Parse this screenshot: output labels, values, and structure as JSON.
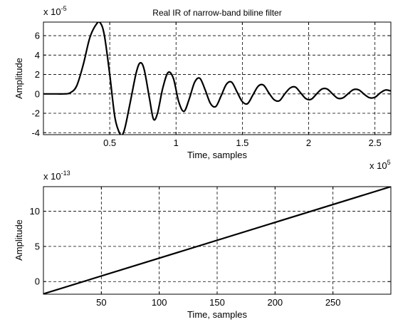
{
  "chart_data": [
    {
      "type": "line",
      "title": "Real IR of narrow-band biline filter",
      "xlabel": "Time, samples",
      "ylabel": "Amplitude",
      "x_exponent_label": "x 10",
      "x_exponent": "5",
      "y_exponent_label": "x 10",
      "y_exponent": "-5",
      "xlim": [
        0,
        2.62
      ],
      "ylim": [
        -4.2,
        7.4
      ],
      "grid": true,
      "x_ticks": [
        0.5,
        1,
        1.5,
        2,
        2.5
      ],
      "x_tick_labels": [
        "0.5",
        "1",
        "1.5",
        "2",
        "2.5"
      ],
      "y_ticks": [
        -4,
        -2,
        0,
        2,
        4,
        6
      ],
      "y_tick_labels": [
        "-4",
        "-2",
        "0",
        "2",
        "4",
        "6"
      ],
      "line_color": "#000000",
      "series": [
        {
          "x": [
            0,
            0.1,
            0.15,
            0.2,
            0.25,
            0.3,
            0.35,
            0.4,
            0.43,
            0.46,
            0.5,
            0.54,
            0.58,
            0.6,
            0.62,
            0.66,
            0.7,
            0.73,
            0.76,
            0.8,
            0.83,
            0.86,
            0.9,
            0.94,
            0.98,
            1.02,
            1.06,
            1.1,
            1.14,
            1.18,
            1.22,
            1.26,
            1.3,
            1.34,
            1.38,
            1.42,
            1.46,
            1.5,
            1.54,
            1.58,
            1.62,
            1.66,
            1.7,
            1.74,
            1.78,
            1.82,
            1.86,
            1.9,
            1.94,
            1.98,
            2.02,
            2.06,
            2.1,
            2.14,
            2.18,
            2.22,
            2.26,
            2.3,
            2.34,
            2.38,
            2.42,
            2.46,
            2.5,
            2.54,
            2.58,
            2.62
          ],
          "y": [
            0,
            0,
            0,
            0.1,
            0.8,
            3,
            5.8,
            7.2,
            7.3,
            6,
            2,
            -2.5,
            -4.2,
            -4.1,
            -3.2,
            -0.5,
            2.2,
            3.2,
            2.5,
            -0.5,
            -2.6,
            -2,
            0.6,
            2.2,
            1.6,
            -0.8,
            -1.8,
            -0.5,
            1.2,
            1.6,
            0.4,
            -1,
            -1.3,
            -0.2,
            1,
            1.2,
            0.2,
            -0.8,
            -1,
            -0.1,
            0.8,
            0.9,
            0.1,
            -0.6,
            -0.7,
            0,
            0.6,
            0.7,
            0.1,
            -0.5,
            -0.55,
            0,
            0.5,
            0.5,
            0,
            -0.45,
            -0.4,
            0.05,
            0.45,
            0.4,
            -0.05,
            -0.4,
            -0.35,
            0.1,
            0.4,
            0.3
          ]
        }
      ]
    },
    {
      "type": "line",
      "title": "",
      "xlabel": "Time, samples",
      "ylabel": "Amplitude",
      "y_exponent_label": "x 10",
      "y_exponent": "-13",
      "xlim": [
        0,
        300
      ],
      "ylim": [
        -1.8,
        13.5
      ],
      "grid": true,
      "x_ticks": [
        50,
        100,
        150,
        200,
        250
      ],
      "x_tick_labels": [
        "50",
        "100",
        "150",
        "200",
        "250"
      ],
      "y_ticks": [
        0,
        5,
        10
      ],
      "y_tick_labels": [
        "0",
        "5",
        "10"
      ],
      "line_color": "#000000",
      "series": [
        {
          "x": [
            0,
            300
          ],
          "y": [
            -1.75,
            13.5
          ]
        }
      ]
    }
  ]
}
